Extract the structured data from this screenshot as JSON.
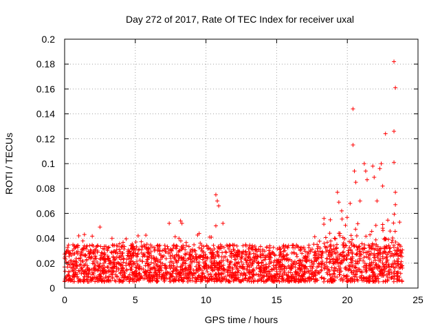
{
  "chart_data": {
    "type": "scatter",
    "title": "Day 272 of 2017, Rate Of TEC Index for receiver uxal",
    "xlabel": "GPS time / hours",
    "ylabel": "ROTI / TECUs",
    "xlim": [
      0,
      25
    ],
    "ylim": [
      0,
      0.2
    ],
    "x_ticks": [
      0,
      5,
      10,
      15,
      20,
      25
    ],
    "y_ticks": [
      0,
      0.02,
      0.04,
      0.06,
      0.08,
      0.1,
      0.12,
      0.14,
      0.16,
      0.18,
      0.2
    ],
    "x_tick_labels": [
      "0",
      "5",
      "10",
      "15",
      "20",
      "25"
    ],
    "y_tick_labels": [
      "0",
      "0.02",
      "0.04",
      "0.06",
      "0.08",
      "0.1",
      "0.12",
      "0.14",
      "0.16",
      "0.18",
      "0.2"
    ],
    "grid": true,
    "marker": "+",
    "series": [
      {
        "name": "ROTI",
        "color": "#ff0000",
        "data_extent": {
          "x_range": [
            0,
            23.9
          ],
          "bulk_y_range": [
            0.005,
            0.035
          ]
        },
        "notable_points": [
          {
            "x": 0.1,
            "y": 0.028
          },
          {
            "x": 1.0,
            "y": 0.042
          },
          {
            "x": 1.4,
            "y": 0.043
          },
          {
            "x": 2.5,
            "y": 0.049
          },
          {
            "x": 5.2,
            "y": 0.042
          },
          {
            "x": 7.4,
            "y": 0.052
          },
          {
            "x": 8.2,
            "y": 0.054
          },
          {
            "x": 8.3,
            "y": 0.052
          },
          {
            "x": 10.7,
            "y": 0.075
          },
          {
            "x": 10.8,
            "y": 0.07
          },
          {
            "x": 10.9,
            "y": 0.066
          },
          {
            "x": 10.7,
            "y": 0.05
          },
          {
            "x": 11.2,
            "y": 0.052
          },
          {
            "x": 19.3,
            "y": 0.077
          },
          {
            "x": 19.4,
            "y": 0.069
          },
          {
            "x": 19.6,
            "y": 0.062
          },
          {
            "x": 20.2,
            "y": 0.068
          },
          {
            "x": 20.4,
            "y": 0.144
          },
          {
            "x": 20.4,
            "y": 0.115
          },
          {
            "x": 20.5,
            "y": 0.094
          },
          {
            "x": 20.6,
            "y": 0.085
          },
          {
            "x": 20.9,
            "y": 0.07
          },
          {
            "x": 21.2,
            "y": 0.1
          },
          {
            "x": 21.3,
            "y": 0.094
          },
          {
            "x": 21.4,
            "y": 0.087
          },
          {
            "x": 21.8,
            "y": 0.098
          },
          {
            "x": 21.9,
            "y": 0.089
          },
          {
            "x": 22.1,
            "y": 0.07
          },
          {
            "x": 22.3,
            "y": 0.096
          },
          {
            "x": 22.4,
            "y": 0.1
          },
          {
            "x": 22.5,
            "y": 0.082
          },
          {
            "x": 22.7,
            "y": 0.124
          },
          {
            "x": 23.3,
            "y": 0.182
          },
          {
            "x": 23.4,
            "y": 0.161
          },
          {
            "x": 23.3,
            "y": 0.126
          },
          {
            "x": 23.3,
            "y": 0.101
          },
          {
            "x": 23.4,
            "y": 0.077
          },
          {
            "x": 23.4,
            "y": 0.067
          },
          {
            "x": 23.7,
            "y": 0.053
          }
        ]
      }
    ]
  }
}
